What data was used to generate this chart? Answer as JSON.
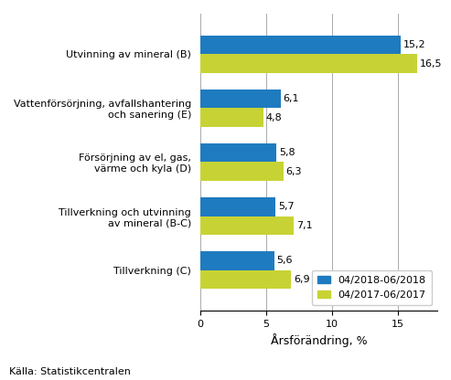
{
  "categories": [
    "Utvinning av mineral (B)",
    "Vattenförsörjning, avfallshantering\noch sanering (E)",
    "Försörjning av el, gas,\nvärme och kyla (D)",
    "Tillverkning och utvinning\nav mineral (B-C)",
    "Tillverkning (C)"
  ],
  "series1_label": "04/2018-06/2018",
  "series2_label": "04/2017-06/2017",
  "series1_values": [
    15.2,
    6.1,
    5.8,
    5.7,
    5.6
  ],
  "series2_values": [
    16.5,
    4.8,
    6.3,
    7.1,
    6.9
  ],
  "series1_color": "#1f7bbf",
  "series2_color": "#c7d334",
  "xlabel": "Årsförändring, %",
  "xlim": [
    0,
    18
  ],
  "xticks": [
    0,
    5,
    10,
    15
  ],
  "source_text": "Källa: Statistikcentralen",
  "bar_height": 0.35,
  "grid_color": "#aaaaaa",
  "background_color": "#ffffff",
  "label_fontsize": 8.0,
  "value_fontsize": 8.0,
  "xlabel_fontsize": 9,
  "source_fontsize": 8,
  "legend_fontsize": 8.0
}
